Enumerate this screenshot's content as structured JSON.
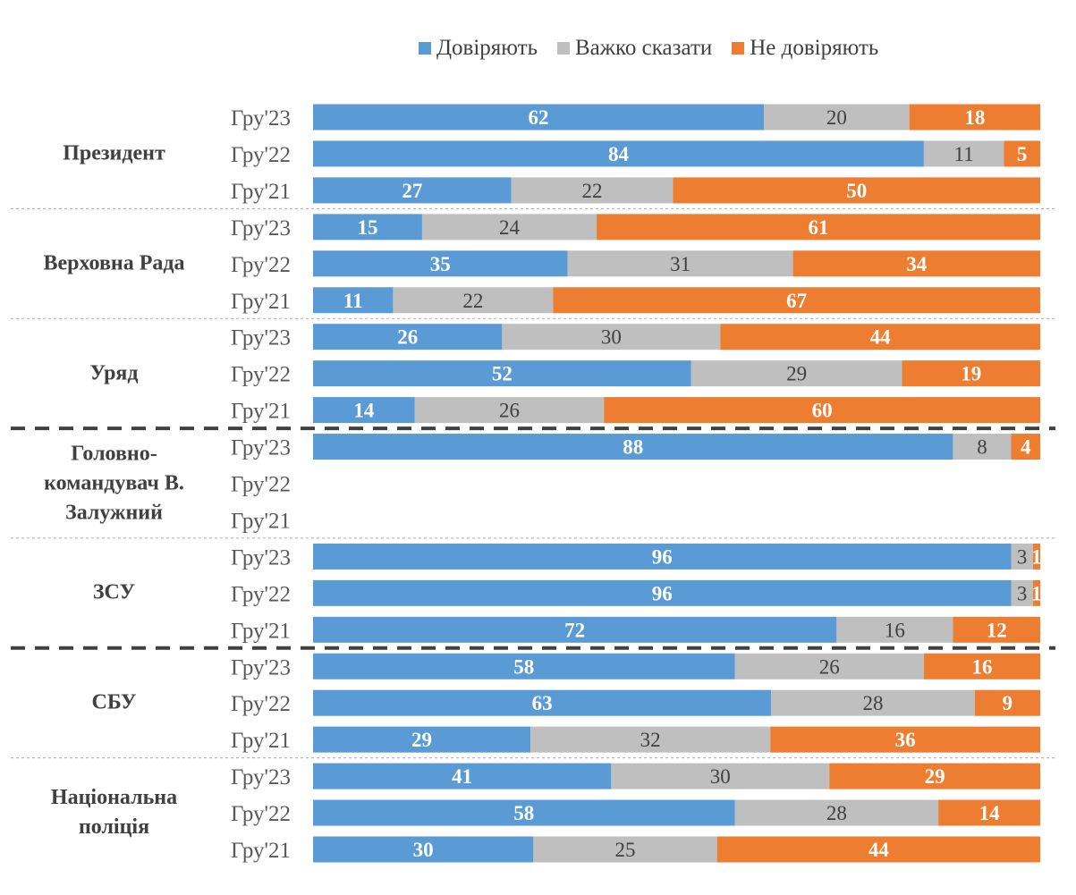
{
  "colors": {
    "trust": "#5B9BD5",
    "hard": "#BFBFBF",
    "distrust": "#ED7D31"
  },
  "chart_data": {
    "type": "bar",
    "orientation": "horizontal",
    "stacked": "100%",
    "legend_position": "top",
    "series_names": [
      "Довіряють",
      "Важко сказати",
      "Не  довіряють"
    ],
    "groups": [
      {
        "label": "Президент",
        "rows": [
          {
            "year": "Гру'23",
            "values": [
              62,
              20,
              18
            ]
          },
          {
            "year": "Гру'22",
            "values": [
              84,
              11,
              5
            ]
          },
          {
            "year": "Гру'21",
            "values": [
              27,
              22,
              50
            ]
          }
        ]
      },
      {
        "label": "Верховна Рада",
        "rows": [
          {
            "year": "Гру'23",
            "values": [
              15,
              24,
              61
            ]
          },
          {
            "year": "Гру'22",
            "values": [
              35,
              31,
              34
            ]
          },
          {
            "year": "Гру'21",
            "values": [
              11,
              22,
              67
            ]
          }
        ]
      },
      {
        "label": "Уряд",
        "rows": [
          {
            "year": "Гру'23",
            "values": [
              26,
              30,
              44
            ]
          },
          {
            "year": "Гру'22",
            "values": [
              52,
              29,
              19
            ]
          },
          {
            "year": "Гру'21",
            "values": [
              14,
              26,
              60
            ]
          }
        ]
      },
      {
        "label": "Головно- командувач В. Залужний",
        "rows": [
          {
            "year": "Гру'23",
            "values": [
              88,
              8,
              4
            ]
          },
          {
            "year": "Гру'22",
            "values": null
          },
          {
            "year": "Гру'21",
            "values": null
          }
        ]
      },
      {
        "label": "ЗСУ",
        "rows": [
          {
            "year": "Гру'23",
            "values": [
              96,
              3,
              1
            ]
          },
          {
            "year": "Гру'22",
            "values": [
              96,
              3,
              1
            ]
          },
          {
            "year": "Гру'21",
            "values": [
              72,
              16,
              12
            ]
          }
        ]
      },
      {
        "label": "СБУ",
        "rows": [
          {
            "year": "Гру'23",
            "values": [
              58,
              26,
              16
            ]
          },
          {
            "year": "Гру'22",
            "values": [
              63,
              28,
              9
            ]
          },
          {
            "year": "Гру'21",
            "values": [
              29,
              32,
              36
            ]
          }
        ]
      },
      {
        "label": "Національна поліція",
        "rows": [
          {
            "year": "Гру'23",
            "values": [
              41,
              30,
              29
            ]
          },
          {
            "year": "Гру'22",
            "values": [
              58,
              28,
              14
            ]
          },
          {
            "year": "Гру'21",
            "values": [
              30,
              25,
              44
            ]
          }
        ]
      }
    ]
  }
}
